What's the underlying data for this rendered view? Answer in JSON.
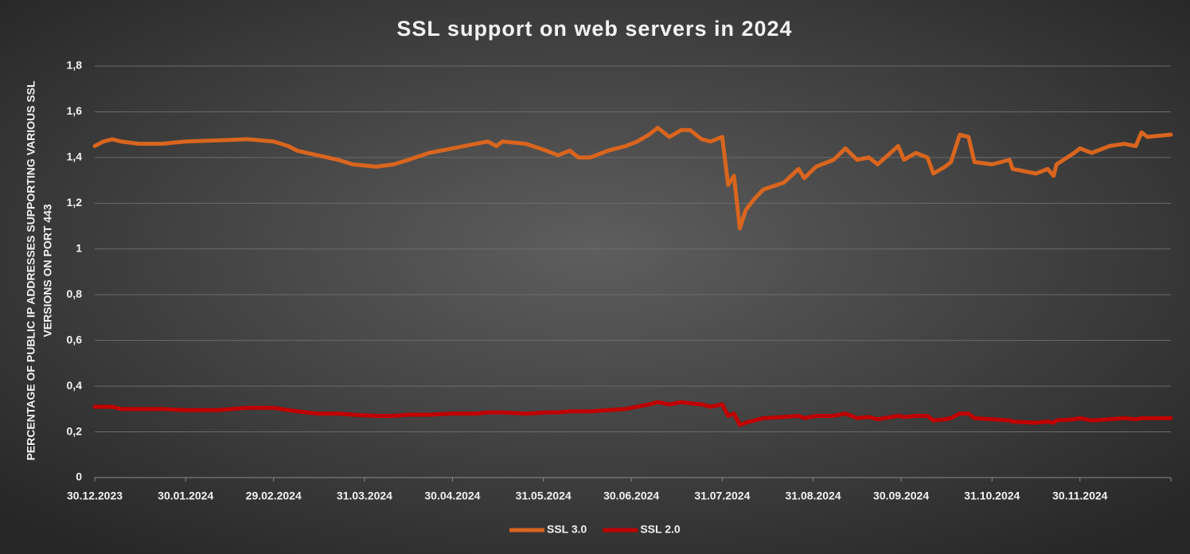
{
  "chart_data": {
    "type": "line",
    "title": "SSL support on web servers in 2024",
    "ylabel": [
      "PERCENTAGE OF PUBLIC IP ADDRESSES SUPPORTING VARIOUS SSL",
      "VERSIONS ON PORT 443"
    ],
    "x": [
      "30.12.2023",
      "02.01.2024",
      "05.01.2024",
      "08.01.2024",
      "14.01.2024",
      "22.01.2024",
      "30.01.2024",
      "10.02.2024",
      "20.02.2024",
      "29.02.2024",
      "05.03.2024",
      "08.03.2024",
      "15.03.2024",
      "22.03.2024",
      "27.03.2024",
      "04.04.2024",
      "10.04.2024",
      "15.04.2024",
      "22.04.2024",
      "30.04.2024",
      "08.05.2024",
      "12.05.2024",
      "15.05.2024",
      "17.05.2024",
      "25.05.2024",
      "01.06.2024",
      "05.06.2024",
      "09.06.2024",
      "12.06.2024",
      "16.06.2024",
      "22.06.2024",
      "28.06.2024",
      "02.07.2024",
      "06.07.2024",
      "09.07.2024",
      "13.07.2024",
      "17.07.2024",
      "20.07.2024",
      "24.07.2024",
      "27.07.2024",
      "31.07.2024",
      "02.08.2024",
      "04.08.2024",
      "06.08.2024",
      "08.08.2024",
      "11.08.2024",
      "14.08.2024",
      "21.08.2024",
      "26.08.2024",
      "28.08.2024",
      "01.09.2024",
      "07.09.2024",
      "11.09.2024",
      "15.09.2024",
      "19.09.2024",
      "22.09.2024",
      "29.09.2024",
      "01.10.2024",
      "05.10.2024",
      "09.10.2024",
      "11.10.2024",
      "15.10.2024",
      "17.10.2024",
      "20.10.2024",
      "23.10.2024",
      "25.10.2024",
      "31.10.2024",
      "06.11.2024",
      "07.11.2024",
      "15.11.2024",
      "19.11.2024",
      "21.11.2024",
      "22.11.2024",
      "28.11.2024",
      "30.11.2024",
      "04.12.2024",
      "10.12.2024",
      "15.12.2024",
      "19.12.2024",
      "21.12.2024",
      "23.12.2024",
      "31.12.2024"
    ],
    "series": [
      {
        "name": "SSL 3.0",
        "color": "#d9651e",
        "values": [
          1.45,
          1.47,
          1.48,
          1.47,
          1.46,
          1.46,
          1.47,
          1.475,
          1.48,
          1.47,
          1.45,
          1.43,
          1.41,
          1.39,
          1.37,
          1.36,
          1.37,
          1.39,
          1.42,
          1.44,
          1.46,
          1.47,
          1.45,
          1.47,
          1.46,
          1.43,
          1.41,
          1.43,
          1.4,
          1.4,
          1.43,
          1.45,
          1.47,
          1.5,
          1.53,
          1.49,
          1.52,
          1.52,
          1.48,
          1.47,
          1.49,
          1.28,
          1.32,
          1.09,
          1.17,
          1.22,
          1.26,
          1.29,
          1.35,
          1.31,
          1.36,
          1.39,
          1.44,
          1.39,
          1.4,
          1.37,
          1.45,
          1.39,
          1.42,
          1.4,
          1.33,
          1.36,
          1.38,
          1.5,
          1.49,
          1.38,
          1.37,
          1.39,
          1.35,
          1.33,
          1.35,
          1.32,
          1.37,
          1.42,
          1.44,
          1.42,
          1.45,
          1.46,
          1.45,
          1.51,
          1.49,
          1.5
        ]
      },
      {
        "name": "SSL 2.0",
        "color": "#c00000",
        "values": [
          0.31,
          0.31,
          0.31,
          0.3,
          0.3,
          0.3,
          0.295,
          0.295,
          0.305,
          0.305,
          0.295,
          0.29,
          0.28,
          0.28,
          0.275,
          0.27,
          0.27,
          0.275,
          0.275,
          0.28,
          0.28,
          0.285,
          0.285,
          0.285,
          0.28,
          0.285,
          0.285,
          0.29,
          0.29,
          0.29,
          0.295,
          0.3,
          0.31,
          0.32,
          0.33,
          0.32,
          0.33,
          0.325,
          0.32,
          0.31,
          0.32,
          0.27,
          0.28,
          0.23,
          0.24,
          0.25,
          0.26,
          0.265,
          0.27,
          0.26,
          0.27,
          0.27,
          0.28,
          0.26,
          0.265,
          0.255,
          0.27,
          0.265,
          0.27,
          0.27,
          0.25,
          0.255,
          0.26,
          0.28,
          0.28,
          0.26,
          0.255,
          0.25,
          0.245,
          0.24,
          0.245,
          0.24,
          0.25,
          0.255,
          0.26,
          0.25,
          0.255,
          0.26,
          0.255,
          0.26,
          0.26,
          0.26
        ]
      }
    ],
    "xlim": [
      "30.12.2023",
      "31.12.2024"
    ],
    "xticks": [
      "30.12.2023",
      "30.01.2024",
      "29.02.2024",
      "31.03.2024",
      "30.04.2024",
      "31.05.2024",
      "30.06.2024",
      "31.07.2024",
      "31.08.2024",
      "30.09.2024",
      "31.10.2024",
      "30.11.2024"
    ],
    "ylim": [
      0,
      1.8
    ],
    "yticks": [
      0,
      {
        "value": 0.2,
        "label": "0,2"
      },
      {
        "value": 0.4,
        "label": "0,4"
      },
      {
        "value": 0.6,
        "label": "0,6"
      },
      {
        "value": 0.8,
        "label": "0,8"
      },
      1,
      {
        "value": 1.2,
        "label": "1,2"
      },
      {
        "value": 1.4,
        "label": "1,4"
      },
      {
        "value": 1.6,
        "label": "1,6"
      },
      {
        "value": 1.8,
        "label": "1,8"
      }
    ],
    "grid": true,
    "legend": "bottom"
  }
}
